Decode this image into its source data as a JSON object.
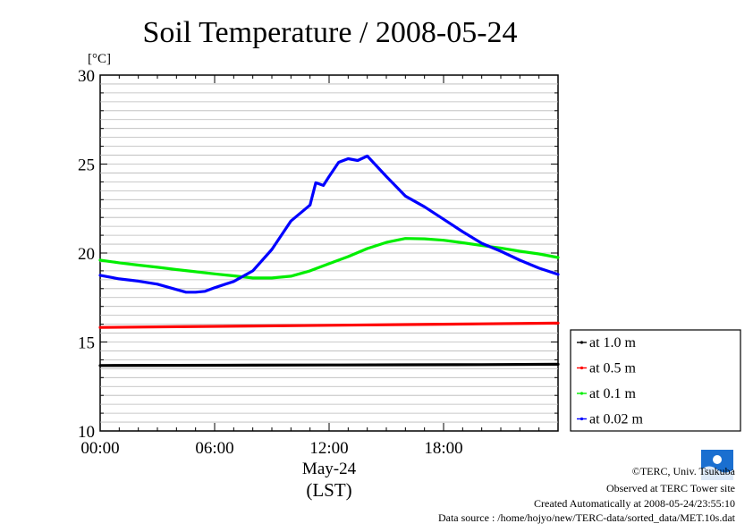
{
  "chart_data": {
    "type": "line",
    "title": "Soil Temperature / 2008-05-24",
    "ylabel": "[°C]",
    "xlabel_line1": "May-24",
    "xlabel_line2": "(LST)",
    "ylim": [
      10,
      30
    ],
    "y_ticks": [
      10,
      15,
      20,
      25,
      30
    ],
    "y_tick_labels": [
      "10",
      "15",
      "20",
      "25",
      "30"
    ],
    "xlim": [
      0,
      24
    ],
    "x_ticks": [
      0,
      6,
      12,
      18
    ],
    "x_tick_labels": [
      "00:00",
      "06:00",
      "12:00",
      "18:00"
    ],
    "grid": true,
    "legend_position": "right, below plot center",
    "series": [
      {
        "name": "at 1.0 m",
        "color": "#000000",
        "x": [
          0,
          4,
          8,
          12,
          16,
          20,
          24
        ],
        "values": [
          13.68,
          13.69,
          13.7,
          13.71,
          13.72,
          13.73,
          13.75
        ]
      },
      {
        "name": "at 0.5 m",
        "color": "#ff0000",
        "x": [
          0,
          4,
          8,
          12,
          16,
          20,
          24
        ],
        "values": [
          15.82,
          15.86,
          15.9,
          15.94,
          15.98,
          16.02,
          16.06
        ]
      },
      {
        "name": "at 0.1 m",
        "color": "#00ee00",
        "x": [
          0,
          1,
          2,
          3,
          4,
          5,
          6,
          7,
          8,
          9,
          10,
          11,
          12,
          13,
          14,
          15,
          16,
          17,
          18,
          19,
          20,
          21,
          22,
          23,
          24
        ],
        "values": [
          19.6,
          19.45,
          19.32,
          19.2,
          19.07,
          18.95,
          18.83,
          18.72,
          18.6,
          18.6,
          18.7,
          19.0,
          19.4,
          19.8,
          20.25,
          20.6,
          20.82,
          20.8,
          20.72,
          20.58,
          20.42,
          20.28,
          20.1,
          19.95,
          19.75
        ]
      },
      {
        "name": "at 0.02 m",
        "color": "#0000ff",
        "x": [
          0,
          1,
          2,
          3,
          4,
          4.5,
          5,
          5.5,
          6,
          7,
          8,
          9,
          10,
          11,
          11.3,
          11.7,
          12,
          12.5,
          13,
          13.5,
          14,
          15,
          16,
          17,
          18,
          19,
          20,
          21,
          22,
          23,
          24
        ],
        "values": [
          18.75,
          18.55,
          18.42,
          18.25,
          17.95,
          17.8,
          17.8,
          17.85,
          18.05,
          18.4,
          19.0,
          20.2,
          21.8,
          22.7,
          23.95,
          23.8,
          24.3,
          25.1,
          25.3,
          25.2,
          25.45,
          24.3,
          23.2,
          22.6,
          21.9,
          21.2,
          20.55,
          20.1,
          19.6,
          19.15,
          18.8
        ]
      }
    ]
  },
  "credits": {
    "copyright": "©TERC, Univ. Tsukuba",
    "observed": "Observed at TERC Tower site",
    "created": "Created Automatically at 2008-05-24/23:55:10",
    "source": "Data source : /home/hojyo/new/TERC-data/sorted_data/MET.10s.dat",
    "logo_text": "TERC"
  }
}
